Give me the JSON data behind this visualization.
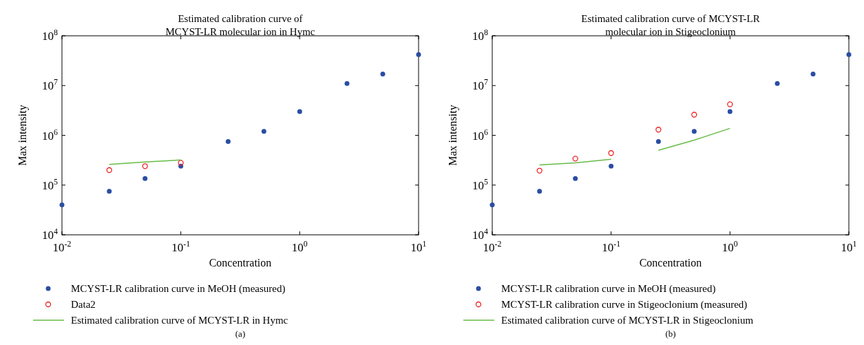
{
  "chart_data": [
    {
      "type": "scatter",
      "title": "Estimated calibration curve of\nMCYST-LR molecular ion in Hymc",
      "xlabel": "Concentration",
      "ylabel": "Max intensity",
      "log": "xy",
      "legend": "bottom",
      "grid": false,
      "xlim": [
        0.01,
        10
      ],
      "xticks": [
        {
          "value": 0.01,
          "label": "10$^{-2}$"
        },
        {
          "value": 0.1,
          "label": "10$^{-1}$"
        },
        {
          "value": 1,
          "label": "10$^{0}$"
        },
        {
          "value": 10,
          "label": "10$^{1}$"
        }
      ],
      "ylim": [
        10000,
        100000000
      ],
      "yticks": [
        {
          "value": 10000,
          "label": "10$^{4}$"
        },
        {
          "value": 100000,
          "label": "10$^{5}$"
        },
        {
          "value": 1000000,
          "label": "10$^{6}$"
        },
        {
          "value": 10000000,
          "label": "10$^{7}$"
        },
        {
          "value": 100000000,
          "label": "10$^{8}$"
        }
      ],
      "series": [
        {
          "name": "MCYST-LR calibration curve in MeOH (measured)",
          "type": "scatter",
          "marker": "circle",
          "color": "#2b4ea2",
          "x": [
            0.01,
            0.025,
            0.05,
            0.1,
            0.25,
            0.5,
            1,
            2.5,
            5,
            10
          ],
          "values": [
            40000,
            75000,
            135000,
            240000,
            750000,
            1200000,
            3000000,
            11000000,
            17000000,
            42000000
          ]
        },
        {
          "name": "Data2",
          "type": "scatter",
          "marker": "circle",
          "color": "#ee2222",
          "x": [
            0.025,
            0.05,
            0.1
          ],
          "values": [
            200000,
            240000,
            280000
          ]
        },
        {
          "name": "Estimated calibration curve of MCYST-LR in Hymc",
          "type": "line",
          "marker": "none",
          "color": "#66bb44",
          "x": [
            0.025,
            0.05,
            0.1
          ],
          "values": [
            260000,
            290000,
            320000
          ]
        }
      ],
      "annotations": [
        "(a)"
      ]
    },
    {
      "type": "scatter",
      "title": "Estimated calibration curve of MCYST-LR\nmolecular ion in Stigeoclonium",
      "xlabel": "Concentration",
      "ylabel": "Max intensity",
      "log": "xy",
      "legend": "bottom",
      "grid": false,
      "xlim": [
        0.01,
        10
      ],
      "xticks": [
        {
          "value": 0.01,
          "label": "10$^{-2}$"
        },
        {
          "value": 0.1,
          "label": "10$^{-1}$"
        },
        {
          "value": 1,
          "label": "10$^{0}$"
        },
        {
          "value": 10,
          "label": "10$^{1}$"
        }
      ],
      "ylim": [
        10000,
        100000000
      ],
      "yticks": [
        {
          "value": 10000,
          "label": "10$^{4}$"
        },
        {
          "value": 100000,
          "label": "10$^{5}$"
        },
        {
          "value": 1000000,
          "label": "10$^{6}$"
        },
        {
          "value": 10000000,
          "label": "10$^{7}$"
        },
        {
          "value": 100000000,
          "label": "10$^{8}$"
        }
      ],
      "series": [
        {
          "name": "MCYST-LR calibration curve in MeOH (measured)",
          "type": "scatter",
          "marker": "circle",
          "color": "#2b4ea2",
          "x": [
            0.01,
            0.025,
            0.05,
            0.1,
            0.25,
            0.5,
            1,
            2.5,
            5,
            10
          ],
          "values": [
            40000,
            75000,
            135000,
            240000,
            750000,
            1200000,
            3000000,
            11000000,
            17000000,
            42000000
          ]
        },
        {
          "name": "MCYST-LR calibration curve in Stigeoclonium (measured)",
          "type": "scatter",
          "marker": "circle",
          "color": "#ee2222",
          "x": [
            0.025,
            0.05,
            0.1,
            0.25,
            0.5,
            1
          ],
          "values": [
            195000,
            340000,
            440000,
            1300000,
            2600000,
            4200000
          ]
        },
        {
          "name": "Estimated calibration curve of MCYST-LR in Stigeoclonium",
          "type": "line",
          "marker": "none",
          "color": "#66bb44",
          "x": [
            0.025,
            0.05,
            0.1,
            0.2,
            0.25,
            0.5,
            1
          ],
          "values": [
            255000,
            280000,
            330000,
            null,
            500000,
            800000,
            1380000
          ]
        }
      ],
      "annotations": [
        "(b)"
      ]
    }
  ]
}
